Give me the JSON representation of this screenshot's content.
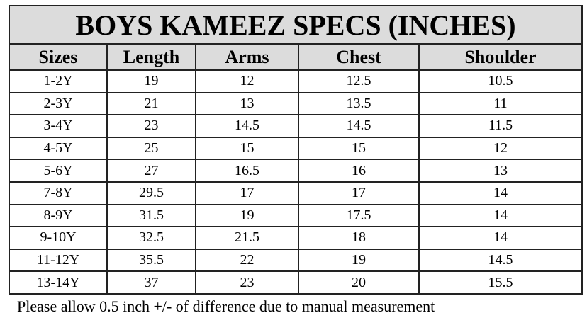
{
  "title": "BOYS KAMEEZ SPECS (INCHES)",
  "table": {
    "header": [
      "Sizes",
      "Length",
      "Arms",
      "Chest",
      "Shoulder"
    ],
    "rows": [
      [
        "1-2Y",
        "19",
        "12",
        "12.5",
        "10.5"
      ],
      [
        "2-3Y",
        "21",
        "13",
        "13.5",
        "11"
      ],
      [
        "3-4Y",
        "23",
        "14.5",
        "14.5",
        "11.5"
      ],
      [
        "4-5Y",
        "25",
        "15",
        "15",
        "12"
      ],
      [
        "5-6Y",
        "27",
        "16.5",
        "16",
        "13"
      ],
      [
        "7-8Y",
        "29.5",
        "17",
        "17",
        "14"
      ],
      [
        "8-9Y",
        "31.5",
        "19",
        "17.5",
        "14"
      ],
      [
        "9-10Y",
        "32.5",
        "21.5",
        "18",
        "14"
      ],
      [
        "11-12Y",
        "35.5",
        "22",
        "19",
        "14.5"
      ],
      [
        "13-14Y",
        "37",
        "23",
        "20",
        "15.5"
      ]
    ]
  },
  "note": "Please allow 0.5 inch +/- of difference due to manual measurement"
}
